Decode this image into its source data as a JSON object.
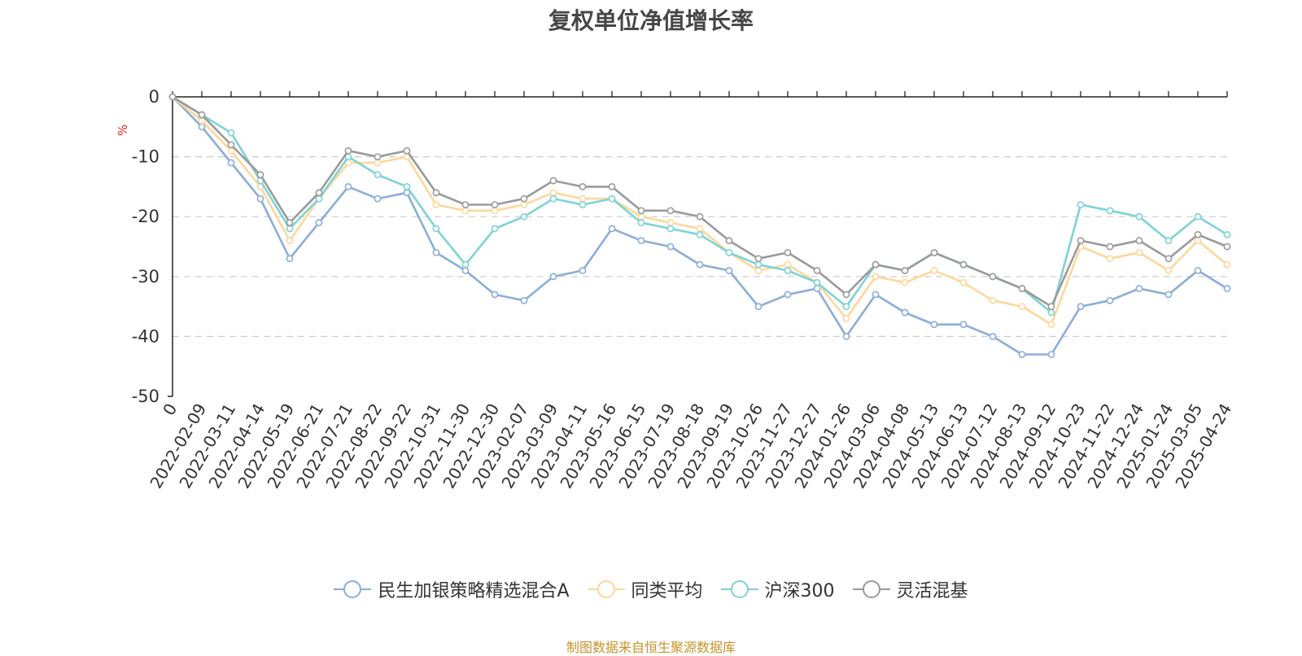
{
  "chart_data": {
    "type": "line",
    "title": "复权单位净值增长率",
    "ylabel": "%",
    "ylim": [
      -50,
      0
    ],
    "yticks": [
      0,
      -10,
      -20,
      -30,
      -40,
      -50
    ],
    "grid": true,
    "legend_position": "bottom",
    "x_tick_labels": [
      "0",
      "2022-02-09",
      "2022-03-11",
      "2022-04-14",
      "2022-05-19",
      "2022-06-21",
      "2022-07-21",
      "2022-08-22",
      "2022-09-22",
      "2022-10-31",
      "2022-11-30",
      "2022-12-30",
      "2023-02-07",
      "2023-03-09",
      "2023-04-11",
      "2023-05-16",
      "2023-06-15",
      "2023-07-19",
      "2023-08-18",
      "2023-09-19",
      "2023-10-26",
      "2023-11-27",
      "2023-12-27",
      "2024-01-26",
      "2024-03-06",
      "2024-04-08",
      "2024-05-13",
      "2024-06-13",
      "2024-07-12",
      "2024-08-13",
      "2024-09-12",
      "2024-10-23",
      "2024-11-22",
      "2024-12-24",
      "2025-01-24",
      "2025-03-05",
      "2025-04-24"
    ],
    "series": [
      {
        "name": "民生加银策略精选混合A",
        "color": "#8badd9",
        "values": [
          0,
          -5,
          -11,
          -17,
          -27,
          -21,
          -15,
          -17,
          -16,
          -26,
          -29,
          -33,
          -34,
          -30,
          -29,
          -22,
          -24,
          -25,
          -28,
          -29,
          -35,
          -33,
          -32,
          -40,
          -33,
          -36,
          -38,
          -38,
          -40,
          -43,
          -43,
          -35,
          -34,
          -32,
          -33,
          -29,
          -32
        ]
      },
      {
        "name": "同类平均",
        "color": "#fdd89a",
        "values": [
          0,
          -4,
          -9,
          -15,
          -24,
          -17,
          -11,
          -11,
          -10,
          -18,
          -19,
          -19,
          -18,
          -16,
          -17,
          -17,
          -20,
          -21,
          -22,
          -26,
          -29,
          -28,
          -31,
          -37,
          -30,
          -31,
          -29,
          -31,
          -34,
          -35,
          -38,
          -25,
          -27,
          -26,
          -29,
          -24,
          -28
        ]
      },
      {
        "name": "沪深300",
        "color": "#7dd3d5",
        "values": [
          0,
          -3,
          -6,
          -14,
          -22,
          -17,
          -10,
          -13,
          -15,
          -22,
          -28,
          -22,
          -20,
          -17,
          -18,
          -17,
          -21,
          -22,
          -23,
          -26,
          -28,
          -29,
          -31,
          -35,
          -28,
          -29,
          -26,
          -28,
          -30,
          -32,
          -36,
          -18,
          -19,
          -20,
          -24,
          -20,
          -23
        ]
      },
      {
        "name": "灵活混基",
        "color": "#9a9a9a",
        "values": [
          0,
          -3,
          -8,
          -13,
          -21,
          -16,
          -9,
          -10,
          -9,
          -16,
          -18,
          -18,
          -17,
          -14,
          -15,
          -15,
          -19,
          -19,
          -20,
          -24,
          -27,
          -26,
          -29,
          -33,
          -28,
          -29,
          -26,
          -28,
          -30,
          -32,
          -35,
          -24,
          -25,
          -24,
          -27,
          -23,
          -25
        ]
      }
    ]
  },
  "footer": {
    "source": "制图数据来自恒生聚源数据库"
  }
}
